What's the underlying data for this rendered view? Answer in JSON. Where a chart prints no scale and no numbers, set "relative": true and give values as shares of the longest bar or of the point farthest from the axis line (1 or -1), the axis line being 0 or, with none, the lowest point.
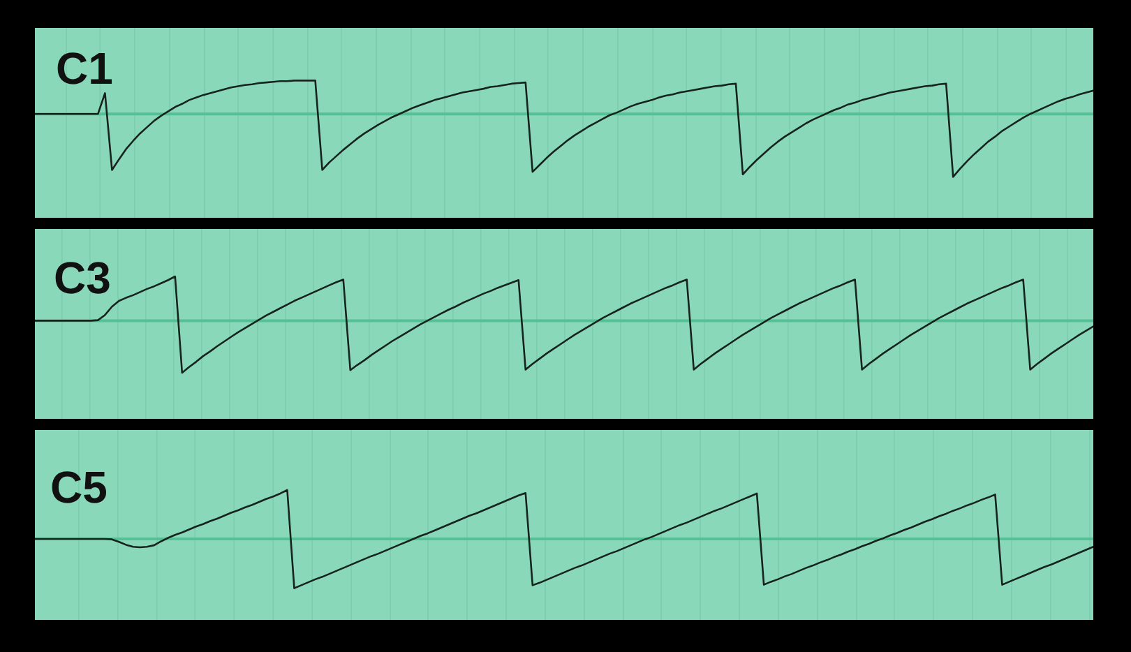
{
  "chart_data": [
    {
      "type": "line",
      "title": "C1",
      "relative": true,
      "grid": "x",
      "color": "#16241d",
      "ref_lines": [
        {
          "axis": "y",
          "value": 0,
          "color": "#55c096"
        }
      ],
      "categories": [
        null,
        null,
        null,
        null,
        null,
        null,
        null,
        null,
        null,
        null,
        null,
        null,
        null,
        null,
        null,
        null,
        null,
        null,
        null,
        null,
        null,
        null,
        null,
        null,
        null,
        null,
        null,
        null,
        null,
        null,
        null,
        null,
        null,
        null,
        null,
        null,
        null,
        null,
        null,
        null,
        null,
        null,
        null,
        null,
        null,
        null,
        null,
        null,
        null,
        null,
        null,
        null,
        null,
        null,
        null,
        null,
        null,
        null,
        null,
        null,
        null,
        null,
        null,
        null,
        null,
        null,
        null,
        null,
        null,
        null,
        null,
        null,
        null,
        null,
        null,
        null,
        null,
        null,
        null,
        null,
        null,
        null,
        null,
        null,
        null,
        null,
        null,
        null,
        null,
        null,
        null,
        null,
        null,
        null,
        null,
        null,
        null,
        null,
        null,
        null,
        null,
        null,
        null,
        null,
        null,
        null,
        null,
        null,
        null,
        null,
        null,
        null,
        null,
        null,
        null,
        null,
        null,
        null,
        null,
        null,
        null,
        null,
        null,
        null,
        null,
        null,
        null,
        null,
        null,
        null,
        null,
        null,
        null,
        null,
        null,
        null,
        null,
        null,
        null,
        null,
        null,
        null,
        null,
        null,
        null,
        null,
        null,
        null,
        null,
        null,
        null,
        null
      ],
      "values": [
        0,
        0,
        0,
        0,
        0,
        0,
        0,
        0,
        0,
        0,
        0.33,
        -0.89,
        -0.72,
        -0.56,
        -0.43,
        -0.31,
        -0.21,
        -0.11,
        -0.03,
        0.04,
        0.11,
        0.16,
        0.22,
        0.26,
        0.3,
        0.33,
        0.36,
        0.39,
        0.42,
        0.44,
        0.46,
        0.47,
        0.49,
        0.5,
        0.51,
        0.52,
        0.52,
        0.53,
        0.53,
        0.53,
        0.53,
        -0.89,
        -0.77,
        -0.67,
        -0.57,
        -0.48,
        -0.39,
        -0.31,
        -0.24,
        -0.17,
        -0.11,
        -0.05,
        0.0,
        0.05,
        0.1,
        0.14,
        0.18,
        0.22,
        0.25,
        0.28,
        0.31,
        0.34,
        0.36,
        0.38,
        0.4,
        0.43,
        0.44,
        0.46,
        0.48,
        0.49,
        0.5,
        -0.92,
        -0.81,
        -0.7,
        -0.6,
        -0.51,
        -0.42,
        -0.34,
        -0.27,
        -0.2,
        -0.14,
        -0.08,
        -0.02,
        0.02,
        0.07,
        0.12,
        0.16,
        0.19,
        0.22,
        0.26,
        0.29,
        0.31,
        0.34,
        0.36,
        0.38,
        0.4,
        0.42,
        0.44,
        0.45,
        0.47,
        0.48,
        -0.96,
        -0.84,
        -0.73,
        -0.63,
        -0.53,
        -0.44,
        -0.36,
        -0.29,
        -0.22,
        -0.15,
        -0.09,
        -0.04,
        0.01,
        0.06,
        0.1,
        0.15,
        0.18,
        0.22,
        0.25,
        0.28,
        0.31,
        0.34,
        0.36,
        0.38,
        0.4,
        0.42,
        0.44,
        0.45,
        0.47,
        0.48,
        -1.0,
        -0.87,
        -0.75,
        -0.64,
        -0.54,
        -0.44,
        -0.36,
        -0.27,
        -0.2,
        -0.13,
        -0.06,
        0.0,
        0.05,
        0.1,
        0.15,
        0.2,
        0.24,
        0.27,
        0.31,
        0.34,
        0.37
      ]
    },
    {
      "type": "line",
      "title": "C3",
      "relative": true,
      "grid": "x",
      "color": "#16241d",
      "ref_lines": [
        {
          "axis": "y",
          "value": 0,
          "color": "#55c096"
        }
      ],
      "categories": [
        null,
        null,
        null,
        null,
        null,
        null,
        null,
        null,
        null,
        null,
        null,
        null,
        null,
        null,
        null,
        null,
        null,
        null,
        null,
        null,
        null,
        null,
        null,
        null,
        null,
        null,
        null,
        null,
        null,
        null,
        null,
        null,
        null,
        null,
        null,
        null,
        null,
        null,
        null,
        null,
        null,
        null,
        null,
        null,
        null,
        null,
        null,
        null,
        null,
        null,
        null,
        null,
        null,
        null,
        null,
        null,
        null,
        null,
        null,
        null,
        null,
        null,
        null,
        null,
        null,
        null,
        null,
        null,
        null,
        null,
        null,
        null,
        null,
        null,
        null,
        null,
        null,
        null,
        null,
        null,
        null,
        null,
        null,
        null,
        null,
        null,
        null,
        null,
        null,
        null,
        null,
        null,
        null,
        null,
        null,
        null,
        null,
        null,
        null,
        null,
        null,
        null,
        null,
        null,
        null,
        null,
        null,
        null,
        null,
        null,
        null,
        null,
        null,
        null,
        null,
        null,
        null,
        null,
        null,
        null,
        null,
        null,
        null,
        null,
        null,
        null,
        null,
        null,
        null,
        null,
        null,
        null,
        null,
        null,
        null,
        null,
        null,
        null,
        null,
        null,
        null,
        null,
        null,
        null,
        null,
        null,
        null,
        null,
        null,
        null,
        null,
        null
      ],
      "values": [
        0,
        0,
        0,
        0,
        0,
        0,
        0,
        0,
        0,
        0.01,
        0.11,
        0.27,
        0.38,
        0.44,
        0.49,
        0.55,
        0.61,
        0.66,
        0.72,
        0.78,
        0.85,
        -1.0,
        -0.89,
        -0.79,
        -0.68,
        -0.59,
        -0.49,
        -0.4,
        -0.31,
        -0.22,
        -0.14,
        -0.06,
        0.02,
        0.1,
        0.17,
        0.24,
        0.31,
        0.38,
        0.44,
        0.5,
        0.56,
        0.62,
        0.68,
        0.74,
        0.79,
        -0.95,
        -0.85,
        -0.76,
        -0.66,
        -0.57,
        -0.48,
        -0.39,
        -0.31,
        -0.23,
        -0.15,
        -0.07,
        0.0,
        0.07,
        0.14,
        0.21,
        0.27,
        0.34,
        0.4,
        0.46,
        0.52,
        0.57,
        0.63,
        0.68,
        0.73,
        0.78,
        -0.94,
        -0.83,
        -0.73,
        -0.63,
        -0.54,
        -0.45,
        -0.36,
        -0.27,
        -0.19,
        -0.11,
        -0.03,
        0.05,
        0.12,
        0.19,
        0.26,
        0.33,
        0.39,
        0.45,
        0.51,
        0.57,
        0.63,
        0.68,
        0.74,
        0.79,
        -0.94,
        -0.83,
        -0.73,
        -0.63,
        -0.54,
        -0.45,
        -0.36,
        -0.27,
        -0.19,
        -0.11,
        -0.03,
        0.05,
        0.12,
        0.19,
        0.26,
        0.33,
        0.39,
        0.45,
        0.51,
        0.57,
        0.63,
        0.68,
        0.74,
        0.79,
        -0.94,
        -0.83,
        -0.73,
        -0.63,
        -0.54,
        -0.45,
        -0.36,
        -0.27,
        -0.19,
        -0.11,
        -0.03,
        0.05,
        0.12,
        0.19,
        0.26,
        0.33,
        0.39,
        0.45,
        0.51,
        0.57,
        0.63,
        0.68,
        0.74,
        0.79,
        -0.94,
        -0.83,
        -0.73,
        -0.63,
        -0.54,
        -0.45,
        -0.36,
        -0.27,
        -0.19,
        -0.11
      ]
    },
    {
      "type": "line",
      "title": "C5",
      "relative": true,
      "grid": "x",
      "color": "#16241d",
      "ref_lines": [
        {
          "axis": "y",
          "value": 0,
          "color": "#55c096"
        }
      ],
      "categories": [
        null,
        null,
        null,
        null,
        null,
        null,
        null,
        null,
        null,
        null,
        null,
        null,
        null,
        null,
        null,
        null,
        null,
        null,
        null,
        null,
        null,
        null,
        null,
        null,
        null,
        null,
        null,
        null,
        null,
        null,
        null,
        null,
        null,
        null,
        null,
        null,
        null,
        null,
        null,
        null,
        null,
        null,
        null,
        null,
        null,
        null,
        null,
        null,
        null,
        null,
        null,
        null,
        null,
        null,
        null,
        null,
        null,
        null,
        null,
        null,
        null,
        null,
        null,
        null,
        null,
        null,
        null,
        null,
        null,
        null,
        null,
        null,
        null,
        null,
        null,
        null,
        null,
        null,
        null,
        null,
        null,
        null,
        null,
        null,
        null,
        null,
        null,
        null,
        null,
        null,
        null,
        null,
        null,
        null,
        null,
        null,
        null,
        null,
        null,
        null,
        null,
        null,
        null,
        null,
        null,
        null,
        null,
        null,
        null,
        null,
        null,
        null,
        null,
        null,
        null,
        null,
        null,
        null,
        null,
        null,
        null,
        null,
        null,
        null,
        null,
        null,
        null,
        null,
        null,
        null,
        null,
        null,
        null,
        null,
        null,
        null,
        null,
        null,
        null,
        null,
        null,
        null,
        null,
        null,
        null,
        null,
        null,
        null,
        null,
        null,
        null,
        null
      ],
      "values": [
        0,
        0,
        0,
        0,
        0,
        0,
        0,
        0,
        0,
        0,
        0,
        -0.01,
        -0.06,
        -0.12,
        -0.16,
        -0.17,
        -0.16,
        -0.13,
        -0.05,
        0.02,
        0.08,
        0.13,
        0.19,
        0.25,
        0.3,
        0.36,
        0.41,
        0.47,
        0.53,
        0.58,
        0.64,
        0.69,
        0.75,
        0.81,
        0.86,
        0.92,
        0.99,
        -1.0,
        -0.94,
        -0.88,
        -0.82,
        -0.77,
        -0.71,
        -0.65,
        -0.59,
        -0.53,
        -0.47,
        -0.41,
        -0.35,
        -0.3,
        -0.24,
        -0.18,
        -0.12,
        -0.06,
        0.0,
        0.06,
        0.11,
        0.17,
        0.23,
        0.29,
        0.35,
        0.41,
        0.47,
        0.52,
        0.58,
        0.64,
        0.7,
        0.76,
        0.82,
        0.88,
        0.93,
        -0.94,
        -0.89,
        -0.83,
        -0.77,
        -0.71,
        -0.65,
        -0.59,
        -0.54,
        -0.48,
        -0.42,
        -0.36,
        -0.3,
        -0.25,
        -0.19,
        -0.13,
        -0.07,
        -0.01,
        0.04,
        0.1,
        0.16,
        0.22,
        0.28,
        0.33,
        0.39,
        0.45,
        0.51,
        0.57,
        0.62,
        0.68,
        0.74,
        0.8,
        0.86,
        0.92,
        -0.93,
        -0.87,
        -0.82,
        -0.76,
        -0.71,
        -0.65,
        -0.59,
        -0.54,
        -0.48,
        -0.43,
        -0.37,
        -0.32,
        -0.26,
        -0.21,
        -0.15,
        -0.1,
        -0.04,
        0.01,
        0.07,
        0.12,
        0.18,
        0.23,
        0.29,
        0.35,
        0.4,
        0.46,
        0.51,
        0.57,
        0.62,
        0.68,
        0.73,
        0.79,
        0.84,
        0.9,
        -0.93,
        -0.87,
        -0.81,
        -0.75,
        -0.69,
        -0.63,
        -0.57,
        -0.52,
        -0.46,
        -0.4,
        -0.34,
        -0.28,
        -0.22,
        -0.16
      ]
    }
  ]
}
